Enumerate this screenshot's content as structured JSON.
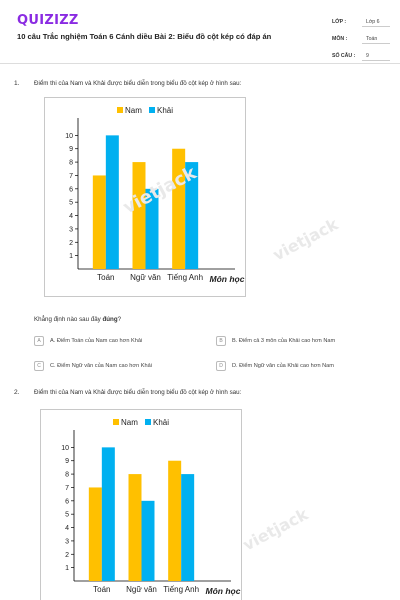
{
  "header": {
    "logo": "QUIZIZZ",
    "title": "10 câu Trắc nghiệm Toán 6 Cánh diều Bài 2: Biểu đồ cột kép có đáp án",
    "meta": [
      {
        "label": "LỚP :",
        "value": "Lớp 6"
      },
      {
        "label": "MÔN :",
        "value": "Toán"
      },
      {
        "label": "SỐ CÂU :",
        "value": "9"
      }
    ]
  },
  "questions": [
    {
      "number": "1.",
      "text": "Điểm thi của Nam và Khải được biểu diễn trong biểu đồ cột kép ở hình sau:",
      "prompt_prefix": "Khẳng định nào sau đây",
      "prompt_bold": "đúng",
      "prompt_suffix": "?",
      "options": [
        {
          "letter": "A",
          "text": "A. Điểm Toán của Nam cao hơn Khải"
        },
        {
          "letter": "B",
          "text": "B. Điểm cả 3 môn của Khải cao hơn Nam"
        },
        {
          "letter": "C",
          "text": "C. Điểm Ngữ văn của Nam cao hơn Khải"
        },
        {
          "letter": "D",
          "text": "D. Điểm Ngữ văn của Khải cao hơn Nam"
        }
      ]
    },
    {
      "number": "2.",
      "text": "Điểm thi của Nam và Khải được biểu diễn trong biểu đồ cột kép ở hình sau:"
    }
  ],
  "watermark": "vietjack",
  "chart_data": [
    {
      "type": "bar",
      "categories": [
        "Toán",
        "Ngữ văn",
        "Tiếng Anh"
      ],
      "series": [
        {
          "name": "Nam",
          "values": [
            7,
            8,
            9
          ],
          "color": "#ffc000"
        },
        {
          "name": "Khải",
          "values": [
            10,
            6,
            8
          ],
          "color": "#00b0f0"
        }
      ],
      "xlabel": "Môn học",
      "ylabel": "",
      "yticks": [
        1,
        2,
        3,
        4,
        5,
        6,
        7,
        8,
        9,
        10
      ],
      "ylim": [
        0,
        11
      ],
      "legend": "top",
      "grid": false
    },
    {
      "type": "bar",
      "categories": [
        "Toán",
        "Ngữ văn",
        "Tiếng Anh"
      ],
      "series": [
        {
          "name": "Nam",
          "values": [
            7,
            8,
            9
          ],
          "color": "#ffc000"
        },
        {
          "name": "Khải",
          "values": [
            10,
            6,
            8
          ],
          "color": "#00b0f0"
        }
      ],
      "xlabel": "Môn học",
      "ylabel": "",
      "yticks": [
        1,
        2,
        3,
        4,
        5,
        6,
        7,
        8,
        9,
        10
      ],
      "ylim": [
        0,
        11
      ],
      "legend": "top",
      "grid": false
    }
  ]
}
